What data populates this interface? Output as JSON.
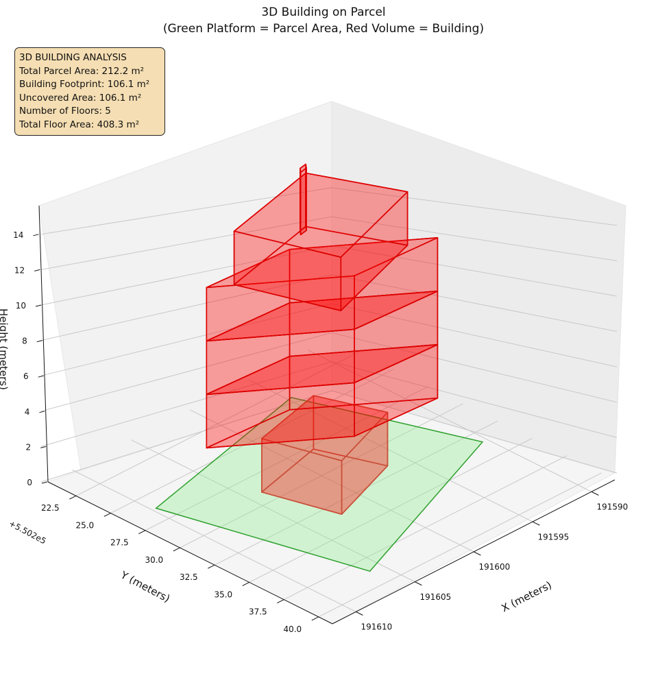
{
  "chart_data": {
    "type": "3d-polygons",
    "title": "3D Building on Parcel",
    "subtitle": "(Green Platform = Parcel Area, Red Volume = Building)",
    "xlabel": "X (meters)",
    "ylabel": "Y (meters)",
    "zlabel": "Height (meters)",
    "y_offset_label": "+5.502e5",
    "x_ticks": [
      "191590",
      "191595",
      "191600",
      "191605",
      "191610"
    ],
    "x_tick_values": [
      191590,
      191595,
      191600,
      191605,
      191610
    ],
    "y_ticks": [
      "22.5",
      "25.0",
      "27.5",
      "30.0",
      "32.5",
      "35.0",
      "37.5",
      "40.0"
    ],
    "y_tick_values": [
      22.5,
      25.0,
      27.5,
      30.0,
      32.5,
      35.0,
      37.5,
      40.0
    ],
    "z_ticks": [
      "0",
      "2",
      "4",
      "6",
      "8",
      "10",
      "12",
      "14"
    ],
    "z_tick_values": [
      0,
      2,
      4,
      6,
      8,
      10,
      12,
      14
    ],
    "xlim": [
      191588,
      191612
    ],
    "ylim": [
      20.5,
      41
    ],
    "zlim": [
      0,
      15.5
    ],
    "grid": true,
    "parcel": {
      "color": "#2ca02c",
      "fill": "#90ee90",
      "corners": [
        [
          191609.7,
          26.3
        ],
        [
          191594.7,
          23.3
        ],
        [
          191590.4,
          33.45
        ],
        [
          191606.0,
          38.6
        ]
      ]
    },
    "building": {
      "color": "#ff0000",
      "edge": "#dd0000",
      "boxes": [
        {
          "footprint": [
            [
              191603.9,
              29.0
            ],
            [
              191602.4,
              33.5
            ],
            [
              191596.4,
              31.7
            ],
            [
              191598.1,
              27.8
            ]
          ],
          "z": [
            0,
            3
          ]
        },
        {
          "footprint": [
            [
              191607.0,
              27.65
            ],
            [
              191599.8,
              32.2
            ],
            [
              191593.1,
              32.5
            ],
            [
              191600.3,
              27.95
            ]
          ],
          "z": [
            3,
            6
          ]
        },
        {
          "footprint": [
            [
              191607.0,
              27.65
            ],
            [
              191599.8,
              32.2
            ],
            [
              191593.1,
              32.5
            ],
            [
              191600.3,
              27.95
            ]
          ],
          "z": [
            6,
            9
          ]
        },
        {
          "footprint": [
            [
              191607.0,
              27.65
            ],
            [
              191599.8,
              32.2
            ],
            [
              191593.1,
              32.5
            ],
            [
              191600.3,
              27.95
            ]
          ],
          "z": [
            9,
            12
          ]
        },
        {
          "footprint": [
            [
              191605.6,
              28.45
            ],
            [
              191603.3,
              34.2
            ],
            [
              191595.0,
              31.95
            ],
            [
              191597.7,
              26.9
            ]
          ],
          "z": [
            12,
            15
          ]
        },
        {
          "footprint": [
            [
              191598.3,
              27.0
            ],
            [
              191597.7,
              26.9
            ],
            [
              191598.0,
              27.2
            ],
            [
              191598.6,
              27.3
            ]
          ],
          "z": [
            12,
            15.5
          ]
        }
      ]
    }
  },
  "info_box": {
    "heading": "3D BUILDING ANALYSIS",
    "lines": [
      "Total Parcel Area: 212.2 m²",
      "Building Footprint: 106.1 m²",
      "Uncovered Area: 106.1 m²",
      "Number of Floors: 5",
      "Total Floor Area: 408.3 m²"
    ]
  }
}
